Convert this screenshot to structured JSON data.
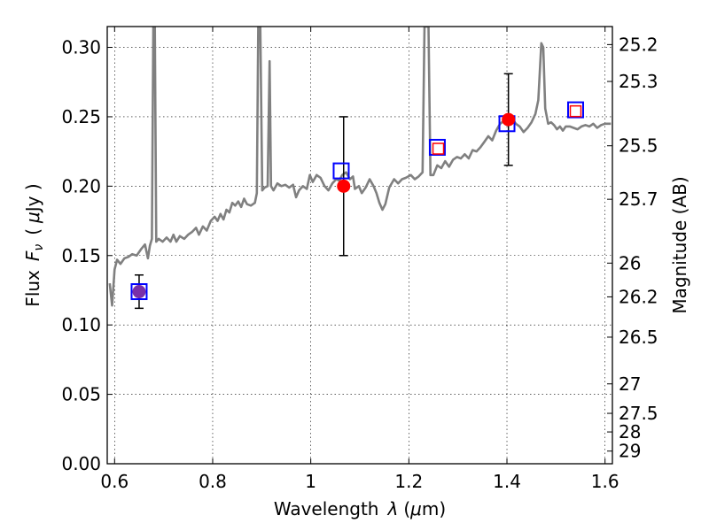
{
  "chart_data": {
    "type": "scatter",
    "xlabel": "Wavelength",
    "xlabel_symbol": "λ",
    "xlabel_unit_open": "(",
    "xlabel_unit_mu": "μ",
    "xlabel_unit_close": "m)",
    "ylabel": "Flux",
    "ylabel_symbol": "F",
    "ylabel_sub": "ν",
    "ylabel_unit_open": "(",
    "ylabel_unit_mu": "μ",
    "ylabel_unit_close": "Jy )",
    "y2label": "Magnitude (AB)",
    "xlim": [
      0.585,
      1.615
    ],
    "ylim": [
      0.0,
      0.315
    ],
    "grid": true,
    "x_ticks": [
      {
        "value": 0.6,
        "label": "0.6"
      },
      {
        "value": 0.8,
        "label": "0.8"
      },
      {
        "value": 1.0,
        "label": "1"
      },
      {
        "value": 1.2,
        "label": "1.2"
      },
      {
        "value": 1.4,
        "label": "1.4"
      },
      {
        "value": 1.6,
        "label": "1.6"
      }
    ],
    "y_ticks": [
      {
        "value": 0.0,
        "label": "0.00"
      },
      {
        "value": 0.05,
        "label": "0.05"
      },
      {
        "value": 0.1,
        "label": "0.10"
      },
      {
        "value": 0.15,
        "label": "0.15"
      },
      {
        "value": 0.2,
        "label": "0.20"
      },
      {
        "value": 0.25,
        "label": "0.25"
      },
      {
        "value": 0.3,
        "label": "0.30"
      }
    ],
    "mag_ticks": [
      {
        "mag": 25.2,
        "label": "25.2"
      },
      {
        "mag": 25.3,
        "label": "25.3"
      },
      {
        "mag": 25.5,
        "label": "25.5"
      },
      {
        "mag": 25.7,
        "label": "25.7"
      },
      {
        "mag": 26.0,
        "label": "26"
      },
      {
        "mag": 26.2,
        "label": "26.2"
      },
      {
        "mag": 26.5,
        "label": "26.5"
      },
      {
        "mag": 27.0,
        "label": "27"
      },
      {
        "mag": 27.5,
        "label": "27.5"
      },
      {
        "mag": 28.0,
        "label": "28"
      },
      {
        "mag": 29.0,
        "label": "29"
      }
    ],
    "spectrum": {
      "color": "#808080",
      "points": [
        [
          0.59,
          0.13
        ],
        [
          0.595,
          0.114
        ],
        [
          0.6,
          0.14
        ],
        [
          0.605,
          0.147
        ],
        [
          0.612,
          0.144
        ],
        [
          0.62,
          0.148
        ],
        [
          0.628,
          0.149
        ],
        [
          0.636,
          0.151
        ],
        [
          0.645,
          0.15
        ],
        [
          0.655,
          0.155
        ],
        [
          0.662,
          0.158
        ],
        [
          0.668,
          0.148
        ],
        [
          0.672,
          0.157
        ],
        [
          0.676,
          0.162
        ],
        [
          0.679,
          0.315
        ],
        [
          0.682,
          0.315
        ],
        [
          0.685,
          0.16
        ],
        [
          0.69,
          0.162
        ],
        [
          0.698,
          0.16
        ],
        [
          0.706,
          0.163
        ],
        [
          0.714,
          0.16
        ],
        [
          0.72,
          0.165
        ],
        [
          0.726,
          0.16
        ],
        [
          0.733,
          0.164
        ],
        [
          0.742,
          0.162
        ],
        [
          0.75,
          0.165
        ],
        [
          0.758,
          0.167
        ],
        [
          0.766,
          0.17
        ],
        [
          0.772,
          0.165
        ],
        [
          0.78,
          0.171
        ],
        [
          0.788,
          0.168
        ],
        [
          0.796,
          0.175
        ],
        [
          0.804,
          0.178
        ],
        [
          0.81,
          0.175
        ],
        [
          0.816,
          0.18
        ],
        [
          0.822,
          0.176
        ],
        [
          0.828,
          0.183
        ],
        [
          0.834,
          0.181
        ],
        [
          0.84,
          0.188
        ],
        [
          0.846,
          0.186
        ],
        [
          0.852,
          0.189
        ],
        [
          0.858,
          0.185
        ],
        [
          0.864,
          0.191
        ],
        [
          0.87,
          0.187
        ],
        [
          0.878,
          0.186
        ],
        [
          0.886,
          0.188
        ],
        [
          0.89,
          0.195
        ],
        [
          0.893,
          0.315
        ],
        [
          0.897,
          0.315
        ],
        [
          0.901,
          0.197
        ],
        [
          0.906,
          0.199
        ],
        [
          0.912,
          0.2
        ],
        [
          0.916,
          0.29
        ],
        [
          0.919,
          0.2
        ],
        [
          0.924,
          0.197
        ],
        [
          0.932,
          0.202
        ],
        [
          0.94,
          0.2
        ],
        [
          0.948,
          0.201
        ],
        [
          0.956,
          0.199
        ],
        [
          0.964,
          0.201
        ],
        [
          0.97,
          0.192
        ],
        [
          0.976,
          0.197
        ],
        [
          0.984,
          0.2
        ],
        [
          0.992,
          0.198
        ],
        [
          0.998,
          0.208
        ],
        [
          1.004,
          0.203
        ],
        [
          1.012,
          0.208
        ],
        [
          1.02,
          0.206
        ],
        [
          1.028,
          0.2
        ],
        [
          1.036,
          0.197
        ],
        [
          1.044,
          0.202
        ],
        [
          1.052,
          0.205
        ],
        [
          1.058,
          0.204
        ],
        [
          1.064,
          0.208
        ],
        [
          1.072,
          0.21
        ],
        [
          1.08,
          0.205
        ],
        [
          1.086,
          0.207
        ],
        [
          1.09,
          0.198
        ],
        [
          1.098,
          0.2
        ],
        [
          1.104,
          0.195
        ],
        [
          1.112,
          0.199
        ],
        [
          1.12,
          0.205
        ],
        [
          1.128,
          0.2
        ],
        [
          1.134,
          0.195
        ],
        [
          1.14,
          0.188
        ],
        [
          1.146,
          0.183
        ],
        [
          1.152,
          0.187
        ],
        [
          1.16,
          0.199
        ],
        [
          1.17,
          0.205
        ],
        [
          1.178,
          0.202
        ],
        [
          1.186,
          0.205
        ],
        [
          1.194,
          0.206
        ],
        [
          1.204,
          0.208
        ],
        [
          1.212,
          0.205
        ],
        [
          1.22,
          0.207
        ],
        [
          1.228,
          0.21
        ],
        [
          1.232,
          0.315
        ],
        [
          1.24,
          0.315
        ],
        [
          1.244,
          0.208
        ],
        [
          1.25,
          0.208
        ],
        [
          1.258,
          0.215
        ],
        [
          1.266,
          0.213
        ],
        [
          1.274,
          0.218
        ],
        [
          1.282,
          0.214
        ],
        [
          1.29,
          0.219
        ],
        [
          1.298,
          0.221
        ],
        [
          1.306,
          0.22
        ],
        [
          1.314,
          0.223
        ],
        [
          1.322,
          0.22
        ],
        [
          1.33,
          0.226
        ],
        [
          1.338,
          0.225
        ],
        [
          1.346,
          0.228
        ],
        [
          1.354,
          0.232
        ],
        [
          1.362,
          0.236
        ],
        [
          1.37,
          0.233
        ],
        [
          1.378,
          0.24
        ],
        [
          1.386,
          0.245
        ],
        [
          1.394,
          0.247
        ],
        [
          1.402,
          0.246
        ],
        [
          1.41,
          0.249
        ],
        [
          1.418,
          0.245
        ],
        [
          1.426,
          0.243
        ],
        [
          1.434,
          0.239
        ],
        [
          1.442,
          0.242
        ],
        [
          1.45,
          0.246
        ],
        [
          1.458,
          0.252
        ],
        [
          1.464,
          0.262
        ],
        [
          1.47,
          0.303
        ],
        [
          1.474,
          0.3
        ],
        [
          1.478,
          0.256
        ],
        [
          1.484,
          0.245
        ],
        [
          1.49,
          0.246
        ],
        [
          1.496,
          0.244
        ],
        [
          1.502,
          0.241
        ],
        [
          1.508,
          0.243
        ],
        [
          1.514,
          0.24
        ],
        [
          1.52,
          0.243
        ],
        [
          1.528,
          0.243
        ],
        [
          1.536,
          0.242
        ],
        [
          1.544,
          0.241
        ],
        [
          1.552,
          0.243
        ],
        [
          1.56,
          0.244
        ],
        [
          1.568,
          0.243
        ],
        [
          1.576,
          0.245
        ],
        [
          1.584,
          0.242
        ],
        [
          1.592,
          0.244
        ],
        [
          1.6,
          0.245
        ],
        [
          1.608,
          0.245
        ],
        [
          1.612,
          0.245
        ]
      ]
    },
    "observed": [
      {
        "x": 0.65,
        "y": 0.124,
        "yerr": 0.012,
        "color": "#7a2fa8"
      },
      {
        "x": 1.067,
        "y": 0.2,
        "yerr": 0.05,
        "color": "#ff0000"
      },
      {
        "x": 1.403,
        "y": 0.248,
        "yerr": 0.033,
        "color": "#ff0000"
      }
    ],
    "model_blue_squares": [
      {
        "x": 0.65,
        "y": 0.124
      },
      {
        "x": 1.062,
        "y": 0.211
      },
      {
        "x": 1.258,
        "y": 0.228
      },
      {
        "x": 1.4,
        "y": 0.245
      },
      {
        "x": 1.54,
        "y": 0.255
      }
    ],
    "model_red_squares": [
      {
        "x": 1.26,
        "y": 0.227
      },
      {
        "x": 1.54,
        "y": 0.254
      }
    ],
    "colors": {
      "blue_square": "#0000ff",
      "red_square": "#ff0000",
      "errorbar": "#000000"
    }
  }
}
